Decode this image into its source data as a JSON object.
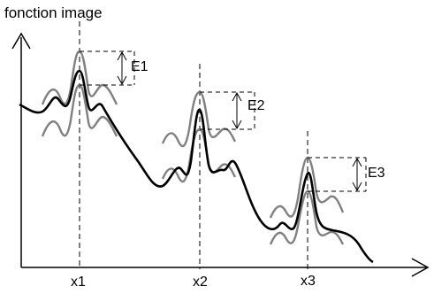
{
  "axes": {
    "y_label": "fonction image",
    "x_markers": [
      "x1",
      "x2",
      "x3"
    ]
  },
  "errors": {
    "labels": [
      "E1",
      "E2",
      "E3"
    ]
  },
  "colors": {
    "main_curve": "#000000",
    "envelope": "#808080",
    "guide": "#000000"
  }
}
